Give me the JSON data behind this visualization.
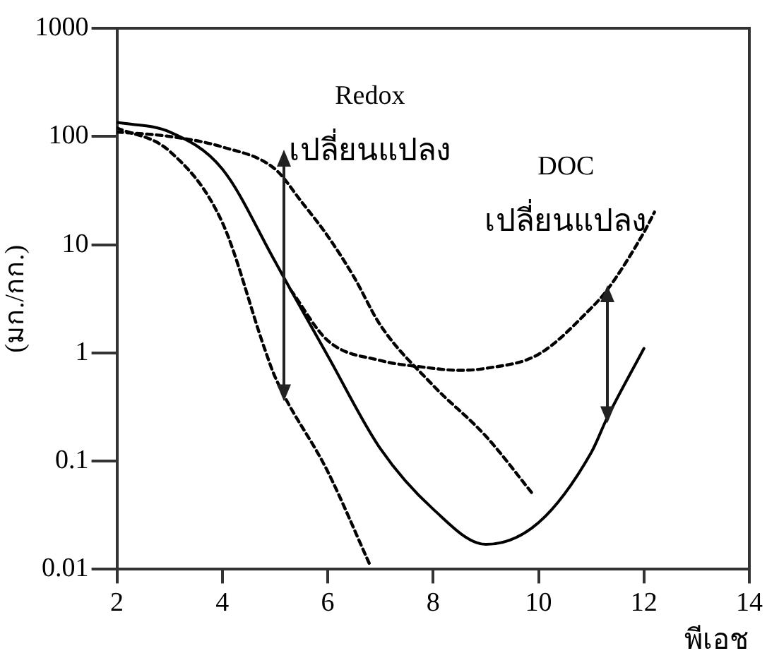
{
  "chart_data": {
    "type": "line",
    "xlabel": "พีเอช",
    "ylabel": "(มก./กก.)",
    "log": "y",
    "xlim": [
      2,
      14
    ],
    "xticks": [
      2,
      4,
      6,
      8,
      10,
      12,
      14
    ],
    "ylim": [
      0.01,
      1000
    ],
    "yticks": [
      0.01,
      0.1,
      1,
      10,
      100,
      1000
    ],
    "grid": false,
    "legend": false,
    "marker": "none",
    "annotations": [
      "Redox เปลี่ยนแปลง",
      "DOC เปลี่ยนแปลง"
    ],
    "series": [
      {
        "color": "#000000",
        "line_style": "solid",
        "x": [
          2,
          3,
          4,
          5,
          5.3,
          6,
          7,
          8,
          9,
          10,
          11,
          11.3,
          12
        ],
        "values": [
          135,
          110,
          50,
          7,
          3.8,
          0.94,
          0.13,
          0.036,
          0.017,
          0.027,
          0.12,
          0.25,
          1.1
        ]
      },
      {
        "color": "#000000",
        "line_style": "dashed",
        "x": [
          5.3,
          6,
          7,
          7.8,
          8.5,
          9,
          10,
          11,
          11.3,
          12,
          12.2
        ],
        "values": [
          3.8,
          1.3,
          0.85,
          0.74,
          0.69,
          0.72,
          0.97,
          2.6,
          3.8,
          13,
          20
        ]
      },
      {
        "color": "#000000",
        "line_style": "dashed",
        "x": [
          2,
          3,
          4,
          5,
          5.5,
          6,
          6.5,
          7,
          8,
          9,
          9.9
        ],
        "values": [
          110,
          100,
          80,
          50,
          25,
          12,
          5,
          1.8,
          0.5,
          0.17,
          0.049
        ]
      },
      {
        "color": "#000000",
        "line_style": "dashed",
        "x": [
          2,
          3,
          4,
          4.8,
          5,
          6,
          6.8
        ],
        "values": [
          120,
          73,
          16,
          1.1,
          0.6,
          0.08,
          0.011
        ]
      }
    ]
  }
}
